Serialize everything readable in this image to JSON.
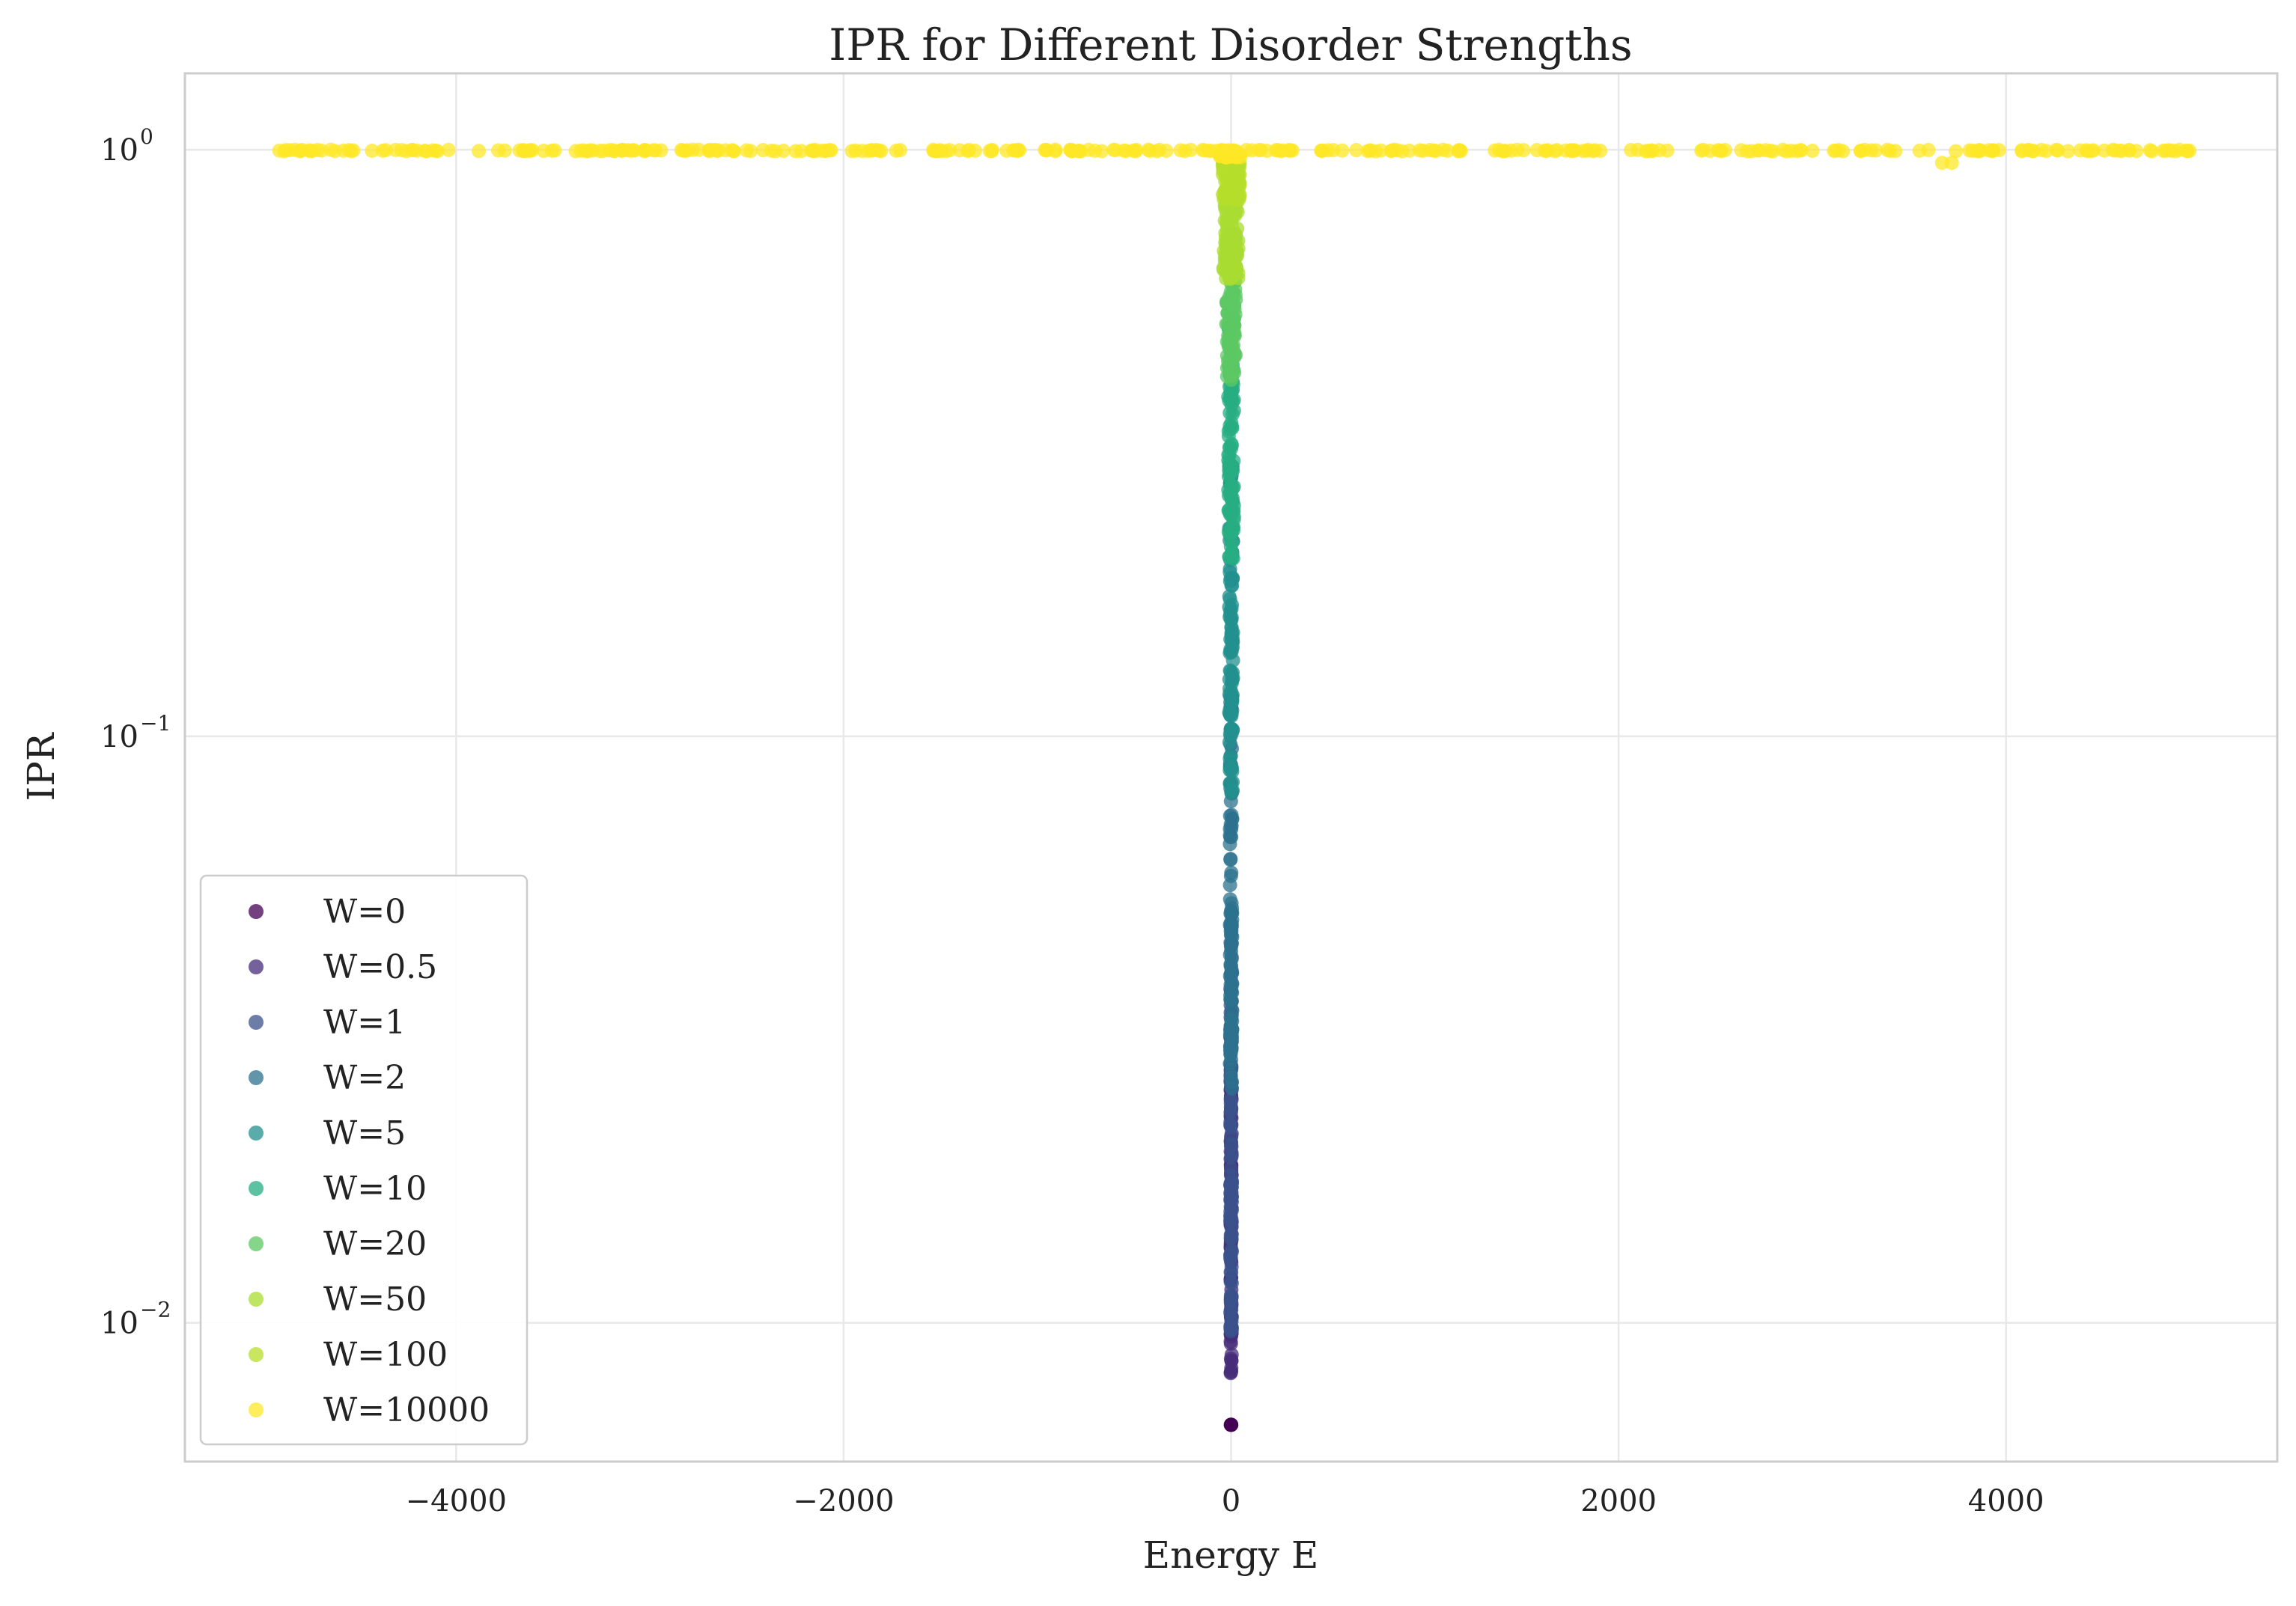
{
  "chart_data": {
    "type": "scatter",
    "title": "IPR for Different Disorder Strengths",
    "xlabel": "Energy E",
    "ylabel": "IPR",
    "xlim": [
      -5400,
      5400
    ],
    "ylim": [
      0.0058,
      1.35
    ],
    "yscale": "log",
    "grid": true,
    "legend_position": "lower-left",
    "x_ticks": [
      {
        "value": -4000,
        "label": "−4000"
      },
      {
        "value": -2000,
        "label": "−2000"
      },
      {
        "value": 0,
        "label": "0"
      },
      {
        "value": 2000,
        "label": "2000"
      },
      {
        "value": 4000,
        "label": "4000"
      }
    ],
    "y_ticks": [
      {
        "value": 1,
        "base": "10",
        "exponent": "0"
      },
      {
        "value": 0.1,
        "base": "10",
        "exponent": "−1"
      },
      {
        "value": 0.01,
        "base": "10",
        "exponent": "−2"
      }
    ],
    "series": [
      {
        "name": "W=0",
        "color": "#440154",
        "x_range": [
          -2,
          2
        ],
        "ipr_range": [
          0.0067,
          0.0067
        ]
      },
      {
        "name": "W=0.5",
        "color": "#472c7a",
        "x_range": [
          -3,
          3
        ],
        "ipr_range": [
          0.0082,
          0.028
        ]
      },
      {
        "name": "W=1",
        "color": "#3b518b",
        "x_range": [
          -4,
          4
        ],
        "ipr_range": [
          0.0095,
          0.045
        ]
      },
      {
        "name": "W=2",
        "color": "#2c718e",
        "x_range": [
          -6,
          6
        ],
        "ipr_range": [
          0.025,
          0.12
        ]
      },
      {
        "name": "W=5",
        "color": "#21908d",
        "x_range": [
          -10,
          10
        ],
        "ipr_range": [
          0.08,
          0.3
        ]
      },
      {
        "name": "W=10",
        "color": "#27ad81",
        "x_range": [
          -15,
          15
        ],
        "ipr_range": [
          0.2,
          0.52
        ]
      },
      {
        "name": "W=20",
        "color": "#5cc863",
        "x_range": [
          -25,
          25
        ],
        "ipr_range": [
          0.4,
          0.72
        ]
      },
      {
        "name": "W=50",
        "color": "#aadc32",
        "x_range": [
          -40,
          40
        ],
        "ipr_range": [
          0.6,
          0.95
        ]
      },
      {
        "name": "W=100",
        "color": "#b5de2b",
        "x_range": [
          -45,
          45
        ],
        "ipr_range": [
          0.82,
          0.99
        ]
      },
      {
        "name": "W=10000",
        "color": "#fde725",
        "x_range": [
          -4950,
          4950
        ],
        "ipr_range": [
          0.97,
          1.0
        ]
      }
    ],
    "w10000_outliers": [
      {
        "x": 3670,
        "y": 0.95
      },
      {
        "x": 3720,
        "y": 0.95
      }
    ]
  }
}
